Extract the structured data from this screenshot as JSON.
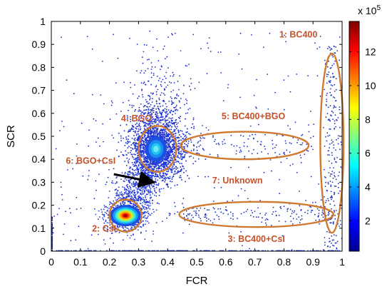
{
  "chart_data": {
    "type": "scatter",
    "title": "",
    "xlabel": "FCR",
    "ylabel": "SCR",
    "xlim": [
      0,
      1
    ],
    "ylim": [
      0,
      1
    ],
    "xticks": [
      "0",
      "0.1",
      "0.2",
      "0.3",
      "0.4",
      "0.5",
      "0.6",
      "0.7",
      "0.8",
      "0.9",
      "1"
    ],
    "yticks": [
      "0",
      "0.1",
      "0.2",
      "0.3",
      "0.4",
      "0.5",
      "0.6",
      "0.7",
      "0.8",
      "0.9",
      "1"
    ],
    "grid": false,
    "colorbar": {
      "exponent_label": "x 10",
      "exponent_power": "5",
      "ticks": [
        "2",
        "4",
        "6",
        "8",
        "10",
        "12"
      ],
      "tick_values": [
        2,
        4,
        6,
        8,
        10,
        12
      ],
      "range": [
        0.2,
        13.8
      ],
      "colormap": "jet"
    },
    "clusters": [
      {
        "label": "1: BC400",
        "center": [
          0.965,
          0.47
        ],
        "radii": [
          0.04,
          0.39
        ]
      },
      {
        "label": "2: CsI",
        "center": [
          0.255,
          0.155
        ],
        "radii": [
          0.055,
          0.07
        ]
      },
      {
        "label": "3: BC400+CsI",
        "center": [
          0.705,
          0.16
        ],
        "radii": [
          0.265,
          0.055
        ]
      },
      {
        "label": "4: BGO",
        "center": [
          0.365,
          0.445
        ],
        "radii": [
          0.065,
          0.1
        ]
      },
      {
        "label": "5: BC400+BGO",
        "center": [
          0.665,
          0.46
        ],
        "radii": [
          0.22,
          0.06
        ]
      },
      {
        "label": "6: BGO+CsI",
        "center": [
          0.3,
          0.3
        ],
        "radii": [
          0,
          0
        ]
      },
      {
        "label": "7: Unknown",
        "center": [
          0.64,
          0.3
        ],
        "radii": [
          0,
          0
        ]
      }
    ],
    "arrow": {
      "from": [
        0.215,
        0.335
      ],
      "to": [
        0.355,
        0.305
      ]
    }
  }
}
